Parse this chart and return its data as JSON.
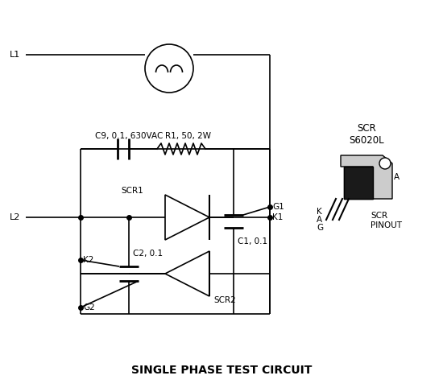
{
  "title": "SINGLE PHASE TEST CIRCUIT",
  "bg": "#ffffff",
  "lc": "#000000",
  "title_fs": 10,
  "figsize": [
    5.5,
    4.87
  ],
  "dpi": 100,
  "scr_label": "SCR\nS6020L",
  "pinout_label": "SCR\nPINOUT",
  "c9_label": "C9, 0.1, 630VAC",
  "r1_label": "R1, 50, 2W",
  "c1_label": "C1, 0.1",
  "c2_label": "C2, 0.1",
  "scr1_label": "SCR1",
  "scr2_label": "SCR2",
  "l1_label": "L1",
  "l2_label": "L2",
  "g1_label": "G1",
  "k1_label": "K1",
  "k2_label": "K2",
  "g2_label": "G2",
  "a_label": "A"
}
